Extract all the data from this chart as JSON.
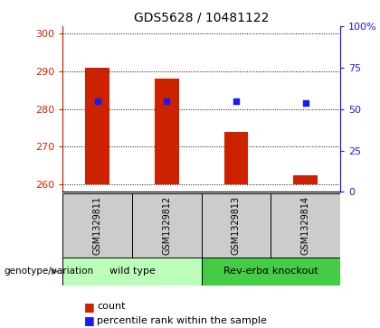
{
  "title": "GDS5628 / 10481122",
  "samples": [
    "GSM1329811",
    "GSM1329812",
    "GSM1329813",
    "GSM1329814"
  ],
  "bar_values": [
    291,
    288,
    274,
    262.5
  ],
  "baseline": 260,
  "blue_values": [
    282,
    282,
    282,
    281.5
  ],
  "ylim_left": [
    258,
    302
  ],
  "yticks_left": [
    260,
    270,
    280,
    290,
    300
  ],
  "ylim_right": [
    0,
    100
  ],
  "yticks_right": [
    0,
    25,
    50,
    75,
    100
  ],
  "ytick_labels_right": [
    "0",
    "25",
    "50",
    "75",
    "100%"
  ],
  "bar_color": "#cc2200",
  "blue_color": "#1a1aee",
  "groups": [
    {
      "label": "wild type",
      "samples": [
        0,
        1
      ],
      "color": "#bbffbb"
    },
    {
      "label": "Rev-erbα knockout",
      "samples": [
        2,
        3
      ],
      "color": "#44cc44"
    }
  ],
  "left_axis_color": "#cc2200",
  "right_axis_color": "#1a1aee",
  "genotype_label": "genotype/variation",
  "legend_count_label": "count",
  "legend_pct_label": "percentile rank within the sample",
  "grid_color": "#000000",
  "sample_area_bg": "#cccccc",
  "bar_width": 0.35
}
